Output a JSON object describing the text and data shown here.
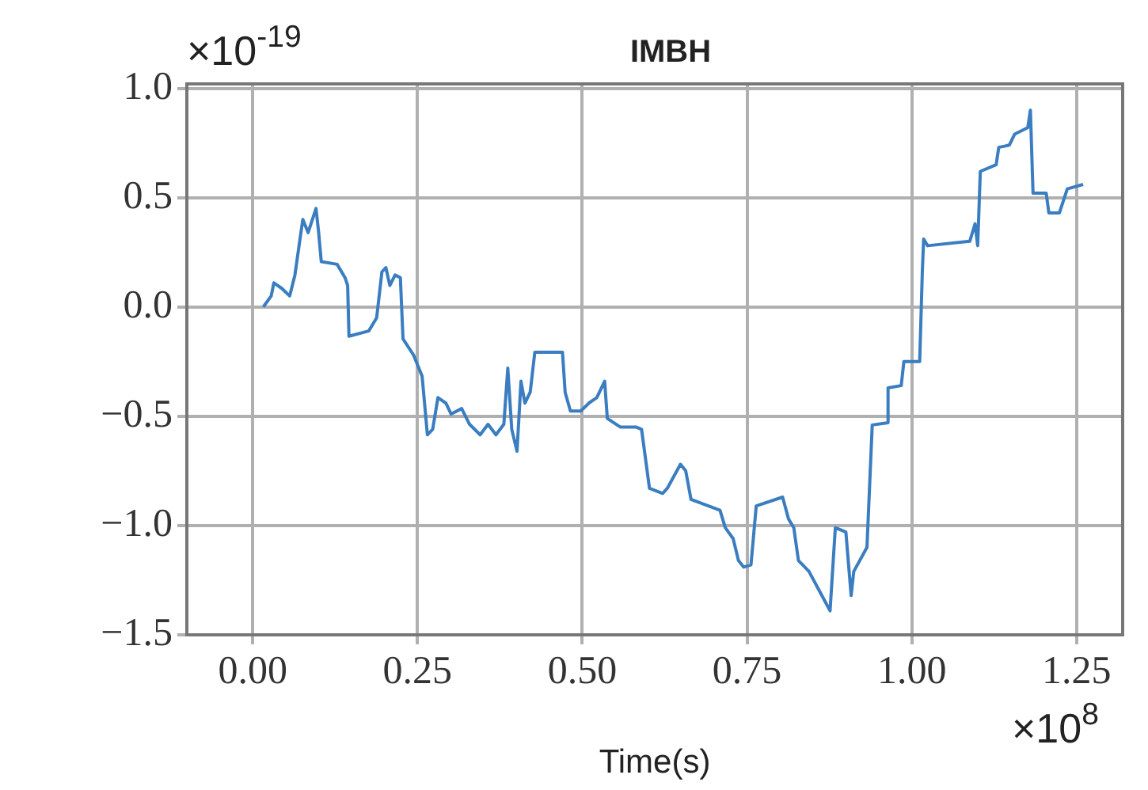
{
  "chart_data": {
    "type": "line",
    "title": "IMBH",
    "xlabel": "Time(s)",
    "annotations": [
      "×10$^{-19}$",
      "×10$^{8}$"
    ],
    "grid": true,
    "legend": false,
    "marker": "none",
    "line_style": "solid",
    "xlim": [
      -0.1,
      1.32
    ],
    "xticks": [
      {
        "value": 0,
        "label": "0.00"
      },
      {
        "value": 0.25,
        "label": "0.25"
      },
      {
        "value": 0.5,
        "label": "0.50"
      },
      {
        "value": 0.75,
        "label": "0.75"
      },
      {
        "value": 1,
        "label": "1.00"
      },
      {
        "value": 1.25,
        "label": "1.25"
      }
    ],
    "ylim": [
      -1.5,
      1.02
    ],
    "yticks": [
      {
        "value": -1.5,
        "label": "−1.5"
      },
      {
        "value": -1,
        "label": "−1.0"
      },
      {
        "value": -0.5,
        "label": "−0.5"
      },
      {
        "value": 0,
        "label": "0.0"
      },
      {
        "value": 0.5,
        "label": "0.5"
      },
      {
        "value": 1,
        "label": "1.0"
      }
    ],
    "series": [
      {
        "color": "#3a7dc0",
        "x": [
          0.016,
          0.028,
          0.032,
          0.044,
          0.056,
          0.064,
          0.072,
          0.076,
          0.084,
          0.096,
          0.1,
          0.104,
          0.128,
          0.14,
          0.144,
          0.146,
          0.176,
          0.188,
          0.196,
          0.202,
          0.208,
          0.216,
          0.224,
          0.228,
          0.244,
          0.257,
          0.265,
          0.273,
          0.281,
          0.293,
          0.301,
          0.317,
          0.329,
          0.345,
          0.357,
          0.369,
          0.381,
          0.387,
          0.393,
          0.401,
          0.407,
          0.413,
          0.421,
          0.428,
          0.47,
          0.474,
          0.482,
          0.498,
          0.51,
          0.522,
          0.534,
          0.538,
          0.558,
          0.582,
          0.59,
          0.602,
          0.622,
          0.629,
          0.649,
          0.657,
          0.665,
          0.709,
          0.717,
          0.729,
          0.737,
          0.745,
          0.756,
          0.764,
          0.804,
          0.813,
          0.821,
          0.828,
          0.844,
          0.86,
          0.876,
          0.884,
          0.9,
          0.908,
          0.912,
          0.932,
          0.94,
          0.964,
          0.964,
          0.984,
          0.988,
          1.012,
          1.016,
          1.018,
          1.024,
          1.088,
          1.096,
          1.1,
          1.104,
          1.128,
          1.132,
          1.148,
          1.156,
          1.176,
          1.18,
          1.184,
          1.204,
          1.208,
          1.224,
          1.236,
          1.26
        ],
        "values": [
          0,
          0.05,
          0.11,
          0.085,
          0.05,
          0.146,
          0.317,
          0.4,
          0.34,
          0.45,
          0.34,
          0.207,
          0.195,
          0.134,
          0.098,
          -0.134,
          -0.11,
          -0.05,
          0.16,
          0.18,
          0.098,
          0.146,
          0.134,
          -0.146,
          -0.22,
          -0.317,
          -0.585,
          -0.56,
          -0.415,
          -0.44,
          -0.49,
          -0.465,
          -0.537,
          -0.585,
          -0.537,
          -0.585,
          -0.537,
          -0.28,
          -0.56,
          -0.66,
          -0.34,
          -0.44,
          -0.39,
          -0.207,
          -0.207,
          -0.39,
          -0.476,
          -0.476,
          -0.44,
          -0.415,
          -0.34,
          -0.51,
          -0.55,
          -0.55,
          -0.56,
          -0.83,
          -0.853,
          -0.83,
          -0.72,
          -0.75,
          -0.88,
          -0.93,
          -1.01,
          -1.06,
          -1.16,
          -1.19,
          -1.18,
          -0.91,
          -0.87,
          -0.97,
          -1.01,
          -1.16,
          -1.21,
          -1.3,
          -1.39,
          -1.01,
          -1.03,
          -1.32,
          -1.21,
          -1.1,
          -0.54,
          -0.53,
          -0.37,
          -0.36,
          -0.25,
          -0.25,
          0.16,
          0.31,
          0.28,
          0.3,
          0.38,
          0.28,
          0.62,
          0.65,
          0.73,
          0.74,
          0.79,
          0.82,
          0.9,
          0.52,
          0.52,
          0.43,
          0.43,
          0.54,
          0.56
        ]
      }
    ]
  }
}
